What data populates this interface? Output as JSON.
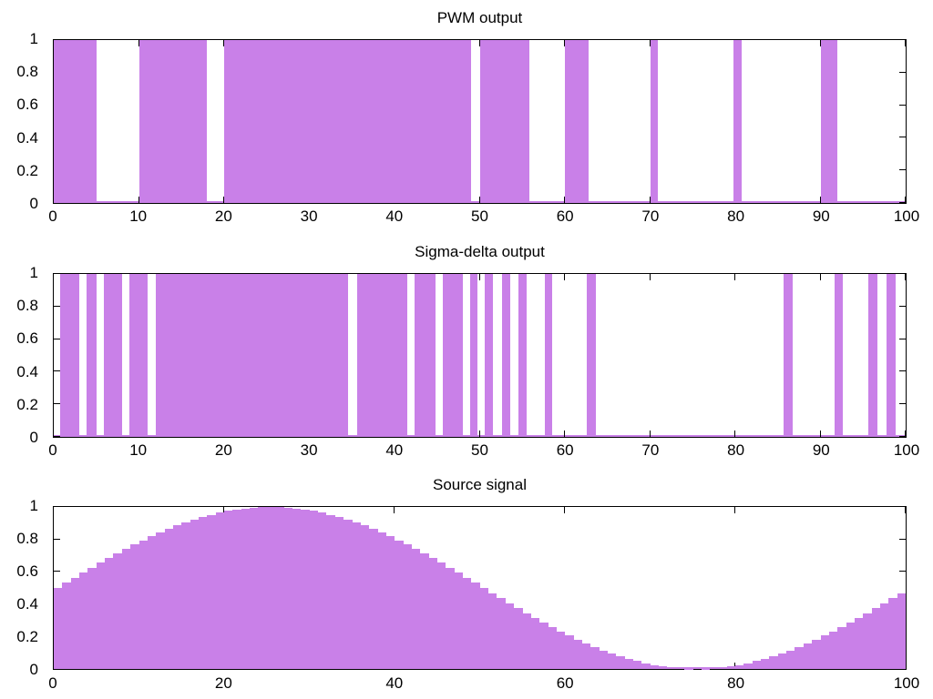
{
  "figure": {
    "background": "#ffffff",
    "fill_color": "#c980e8",
    "axis_color": "#000000",
    "text_color": "#000000",
    "grid": false,
    "legend": "none"
  },
  "chart_data": [
    {
      "type": "area",
      "title": "PWM output",
      "xlabel": "",
      "ylabel": "",
      "xlim": [
        0,
        100
      ],
      "ylim": [
        0,
        1
      ],
      "x_ticks": [
        0,
        10,
        20,
        30,
        40,
        50,
        60,
        70,
        80,
        90,
        100
      ],
      "x_tick_labels": [
        "0",
        "10",
        "20",
        "30",
        "40",
        "50",
        "60",
        "70",
        "80",
        "90",
        "100"
      ],
      "y_ticks": [
        0,
        0.2,
        0.4,
        0.6,
        0.8,
        1
      ],
      "y_tick_labels": [
        "0",
        "0.2",
        "0.4",
        "0.6",
        "0.8",
        "1"
      ],
      "signal_levels": [
        0,
        1
      ],
      "high_intervals": [
        [
          0,
          5
        ],
        [
          10,
          18
        ],
        [
          20,
          49
        ],
        [
          50,
          55.8
        ],
        [
          60,
          62.8
        ],
        [
          70,
          70.9
        ],
        [
          79.8,
          80.8
        ],
        [
          90,
          92
        ]
      ]
    },
    {
      "type": "area",
      "title": "Sigma-delta output",
      "xlabel": "",
      "ylabel": "",
      "xlim": [
        0,
        100
      ],
      "ylim": [
        0,
        1
      ],
      "x_ticks": [
        0,
        10,
        20,
        30,
        40,
        50,
        60,
        70,
        80,
        90,
        100
      ],
      "x_tick_labels": [
        "0",
        "10",
        "20",
        "30",
        "40",
        "50",
        "60",
        "70",
        "80",
        "90",
        "100"
      ],
      "y_ticks": [
        0,
        0.2,
        0.4,
        0.6,
        0.8,
        1
      ],
      "y_tick_labels": [
        "0",
        "0.2",
        "0.4",
        "0.6",
        "0.8",
        "1"
      ],
      "signal_levels": [
        0,
        1
      ],
      "high_intervals": [
        [
          0.7,
          3
        ],
        [
          3.9,
          5
        ],
        [
          5.9,
          8
        ],
        [
          8.9,
          11
        ],
        [
          12,
          34.5
        ],
        [
          35.6,
          41.5
        ],
        [
          42.4,
          44.8
        ],
        [
          45.7,
          48
        ],
        [
          48.9,
          49.7
        ],
        [
          50.6,
          51.6
        ],
        [
          52.6,
          53.6
        ],
        [
          54.5,
          55.5
        ],
        [
          57.6,
          58.5
        ],
        [
          62.6,
          63.6
        ],
        [
          85.7,
          86.7
        ],
        [
          91.7,
          92.6
        ],
        [
          95.6,
          96.7
        ],
        [
          97.8,
          98.8
        ]
      ]
    },
    {
      "type": "area",
      "title": "Source signal",
      "xlabel": "",
      "ylabel": "",
      "xlim": [
        0,
        100
      ],
      "ylim": [
        0,
        1
      ],
      "x_ticks": [
        0,
        20,
        40,
        60,
        80,
        100
      ],
      "x_tick_labels": [
        "0",
        "20",
        "40",
        "60",
        "80",
        "100"
      ],
      "y_ticks": [
        0,
        0.2,
        0.4,
        0.6,
        0.8,
        1
      ],
      "y_tick_labels": [
        "0",
        "0.2",
        "0.4",
        "0.6",
        "0.8",
        "1"
      ],
      "sample_step": 1,
      "values": [
        0.5,
        0.531,
        0.563,
        0.594,
        0.624,
        0.655,
        0.684,
        0.713,
        0.741,
        0.768,
        0.794,
        0.819,
        0.842,
        0.865,
        0.885,
        0.905,
        0.922,
        0.938,
        0.952,
        0.965,
        0.976,
        0.984,
        0.991,
        0.996,
        0.999,
        1,
        0.999,
        0.996,
        0.991,
        0.984,
        0.976,
        0.965,
        0.952,
        0.938,
        0.922,
        0.905,
        0.885,
        0.865,
        0.842,
        0.819,
        0.794,
        0.768,
        0.741,
        0.713,
        0.684,
        0.655,
        0.624,
        0.594,
        0.563,
        0.531,
        0.5,
        0.469,
        0.437,
        0.406,
        0.376,
        0.345,
        0.316,
        0.287,
        0.259,
        0.232,
        0.206,
        0.181,
        0.158,
        0.135,
        0.115,
        0.095,
        0.078,
        0.062,
        0.048,
        0.035,
        0.024,
        0.016,
        0.009,
        0.004,
        0.001,
        0,
        0.001,
        0.004,
        0.009,
        0.016,
        0.024,
        0.035,
        0.048,
        0.062,
        0.078,
        0.095,
        0.115,
        0.135,
        0.158,
        0.181,
        0.206,
        0.232,
        0.259,
        0.287,
        0.316,
        0.345,
        0.376,
        0.406,
        0.437,
        0.469
      ]
    }
  ]
}
